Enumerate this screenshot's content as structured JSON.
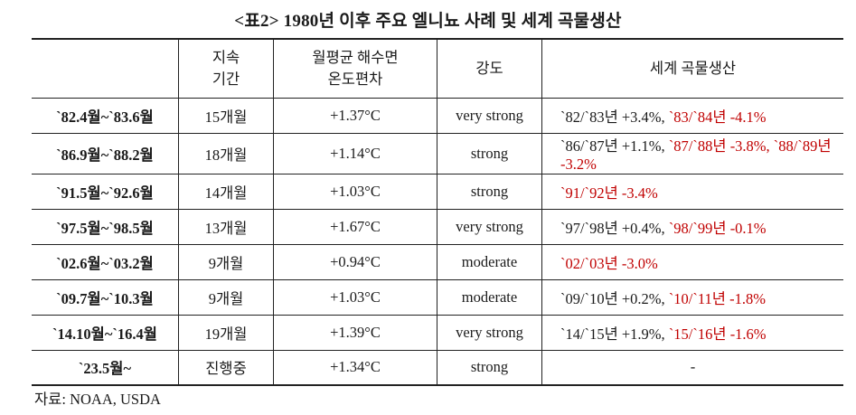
{
  "title": "<표2> 1980년 이후 주요 엘니뇨 사례 및 세계 곡물생산",
  "headers": {
    "col1": "",
    "col2_line1": "지속",
    "col2_line2": "기간",
    "col3_line1": "월평균 해수면",
    "col3_line2": "온도편차",
    "col4": "강도",
    "col5": "세계 곡물생산"
  },
  "rows": [
    {
      "period": "`82.4월~`83.6월",
      "duration": "15개월",
      "sst": "+1.37°C",
      "intensity": "very strong",
      "production": [
        {
          "text": "`82/`83년 +3.4%, ",
          "neg": false
        },
        {
          "text": "`83/`84년 -4.1%",
          "neg": true
        }
      ]
    },
    {
      "period": "`86.9월~`88.2월",
      "duration": "18개월",
      "sst": "+1.14°C",
      "intensity": "strong",
      "production": [
        {
          "text": "`86/`87년 +1.1%, ",
          "neg": false
        },
        {
          "text": "`87/`88년 -3.8%, `88/`89년 -3.2%",
          "neg": true
        }
      ]
    },
    {
      "period": "`91.5월~`92.6월",
      "duration": "14개월",
      "sst": "+1.03°C",
      "intensity": "strong",
      "production": [
        {
          "text": "`91/`92년 -3.4%",
          "neg": true
        }
      ]
    },
    {
      "period": "`97.5월~`98.5월",
      "duration": "13개월",
      "sst": "+1.67°C",
      "intensity": "very strong",
      "production": [
        {
          "text": "`97/`98년 +0.4%, ",
          "neg": false
        },
        {
          "text": "`98/`99년 -0.1%",
          "neg": true
        }
      ]
    },
    {
      "period": "`02.6월~`03.2월",
      "duration": "9개월",
      "sst": "+0.94°C",
      "intensity": "moderate",
      "production": [
        {
          "text": "`02/`03년 -3.0%",
          "neg": true
        }
      ]
    },
    {
      "period": "`09.7월~`10.3월",
      "duration": "9개월",
      "sst": "+1.03°C",
      "intensity": "moderate",
      "production": [
        {
          "text": "`09/`10년 +0.2%, ",
          "neg": false
        },
        {
          "text": "`10/`11년 -1.8%",
          "neg": true
        }
      ]
    },
    {
      "period": "`14.10월~`16.4월",
      "duration": "19개월",
      "sst": "+1.39°C",
      "intensity": "very strong",
      "production": [
        {
          "text": "`14/`15년 +1.9%, ",
          "neg": false
        },
        {
          "text": "`15/`16년 -1.6%",
          "neg": true
        }
      ]
    },
    {
      "period": "`23.5월~",
      "duration": "진행중",
      "sst": "+1.34°C",
      "intensity": "strong",
      "production": [
        {
          "text": "-",
          "neg": false,
          "dash": true
        }
      ]
    }
  ],
  "source": "자료: NOAA, USDA",
  "colors": {
    "negative": "#c00000",
    "text": "#1a1a1a"
  }
}
